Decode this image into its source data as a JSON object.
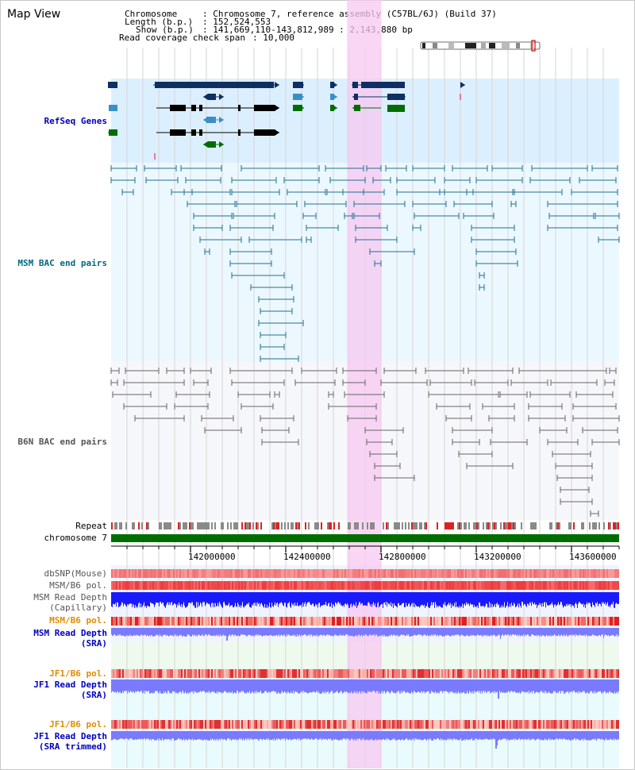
{
  "window": {
    "title": "Map View"
  },
  "header": {
    "chromosome_label": "Chromosome",
    "chromosome_value": ": Chromosome 7, reference assembly (C57BL/6J) (Build 37)",
    "length_label": "Length (b.p.)",
    "length_value": ": 152,524,553",
    "show_label": "Show (b.p.)",
    "show_value": ": 141,669,110-143,812,989 : 2,143,880 bp",
    "coverage_label": "Read coverage check span",
    "coverage_value": ": 10,000"
  },
  "tracks": {
    "refseq": "RefSeq Genes",
    "msm_bac": "MSM BAC end pairs",
    "b6n_bac": "B6N BAC end pairs",
    "repeat": "Repeat",
    "chromosome": "chromosome 7",
    "dbsnp": "dbSNP(Mouse)",
    "msm_b6_pol_1": "MSM/B6 pol.",
    "msm_depth_cap_1": "MSM Read Depth",
    "msm_depth_cap_2": "(Capillary)",
    "msm_b6_pol_2": "MSM/B6 pol.",
    "msm_depth_sra_1": "MSM Read Depth",
    "msm_depth_sra_2": "(SRA)",
    "jf1_b6_pol_1": "JF1/B6 pol.",
    "jf1_depth_sra_1": "JF1 Read Depth",
    "jf1_depth_sra_2": "(SRA)",
    "jf1_b6_pol_2": "JF1/B6 pol.",
    "jf1_trim_1": "JF1 Read Depth",
    "jf1_trim_2": "(SRA trimmed)"
  },
  "axis": {
    "ticks": [
      "142000000",
      "142400000",
      "142800000",
      "143200000",
      "143600000"
    ],
    "start": 141669110,
    "end": 143812989
  },
  "highlight": {
    "from": 142665000,
    "to": 142810000
  },
  "colors": {
    "refseq_bg": "#dcefff",
    "bac_msm_bg": "#ecf8ff",
    "highlight": "#f7c8f0",
    "gene_dark": "#0f2f60",
    "gene_mid": "#3a8fc6",
    "gene_green": "#006d00",
    "msm_bac": "#1f6f8f",
    "b6n_bac": "#666666",
    "depth_blue": "#1a1aff",
    "depth_light": "#7a7aff",
    "snp_red": "#f06060",
    "label_blue": "#0000c0",
    "label_teal": "#006a80",
    "label_orange": "#e08c00"
  },
  "ideogram": {
    "label": "chromosome ideogram"
  }
}
